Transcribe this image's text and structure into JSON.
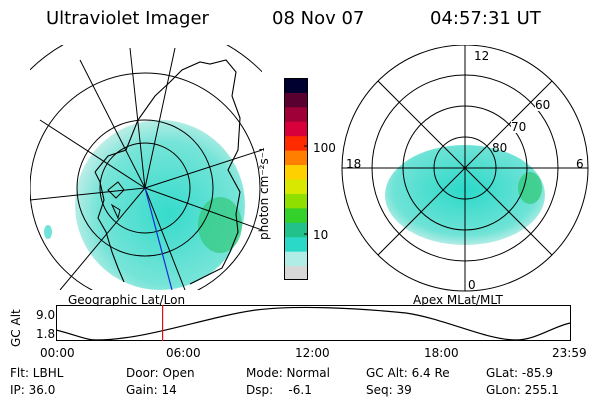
{
  "header": {
    "instrument": "Ultraviolet Imager",
    "date": "08 Nov 07",
    "time": "04:57:31 UT"
  },
  "left_panel": {
    "label": "Geographic Lat/Lon"
  },
  "right_panel": {
    "label": "Apex MLat/MLT",
    "mlt_labels": [
      "12",
      "18",
      "6",
      "0"
    ],
    "mlat_labels": [
      "60",
      "70",
      "80"
    ]
  },
  "colorbar": {
    "label": "photon cm⁻²s⁻¹",
    "ticks": [
      "100",
      "10"
    ],
    "colors": [
      "#d8d8d8",
      "#b0ede6",
      "#2bd9c9",
      "#22c08b",
      "#33d12a",
      "#8fe000",
      "#d9e800",
      "#ffd000",
      "#ff8000",
      "#ff2b00",
      "#d8003a",
      "#a00038",
      "#5a0030",
      "#000030"
    ]
  },
  "orbit_plot": {
    "ylabel": "GC Alt",
    "y_ticks": [
      "9.0",
      "1.8"
    ],
    "x_ticks": [
      "00:00",
      "06:00",
      "12:00",
      "18:00",
      "23:59"
    ],
    "current_time_fraction": 0.207
  },
  "info": {
    "flt": "Flt: LBHL",
    "door": "Door: Open",
    "mode": "Mode: Normal",
    "gc_alt": "GC Alt: 6.4 Re",
    "glat": "GLat: -85.9",
    "ip": "IP: 36.0",
    "gain": "Gain: 14",
    "dsp": "Dsp:    -6.1",
    "seq": "Seq: 39",
    "glon": "GLon: 255.1"
  }
}
